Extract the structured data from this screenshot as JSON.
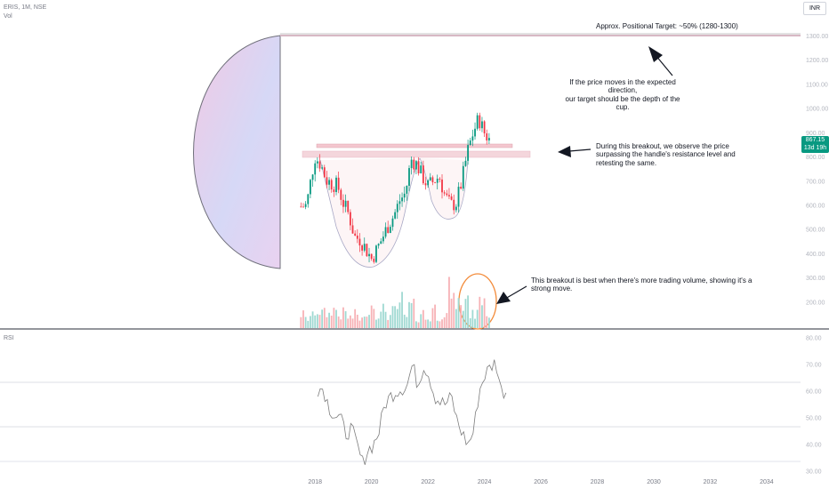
{
  "header": {
    "symbol_line": "ERIS, 1M, NSE",
    "volume_label": "Vol",
    "currency": "INR",
    "rsi_label": "RSI"
  },
  "last_price": {
    "value": "867.15",
    "countdown": "13d 19h"
  },
  "annotations": {
    "target": "Approx. Positional Target: ~50% (1280-1300)",
    "depth": "If the price moves in the expected direction,\nour target should be the depth of the cup.",
    "breakout": "During this breakout, we observe the price\nsurpassing the handle's resistance level and\nretesting the same.",
    "volume": "This breakout is best when there's more trading volume, showing it's a strong move."
  },
  "colors": {
    "up": "#089981",
    "down": "#f23645",
    "volume_up": "#9fd9d2",
    "volume_down": "#f7b2b6",
    "rsi_line": "#7e7e7e",
    "ellipse": "#f38b3a",
    "cup_gradient_start": "#f3cfe6",
    "cup_gradient_end": "#d0dbfb"
  },
  "chart_data": [
    {
      "type": "candlestick",
      "title": "ERIS, 1M, NSE",
      "x_axis": {
        "ticks": [
          "2018",
          "2020",
          "2022",
          "2024",
          "2026",
          "2028",
          "2030",
          "2032",
          "2034"
        ],
        "range": [
          2017.3,
          2035.2
        ]
      },
      "y_axis": {
        "ticks": [
          200,
          300,
          400,
          500,
          600,
          700,
          800,
          900,
          1000,
          1100,
          1200,
          1300
        ],
        "range": [
          152,
          1327
        ],
        "unit": "INR"
      },
      "target_line": 1280,
      "resistance_line": 848,
      "support_zone": [
        810,
        830
      ],
      "close_series": {
        "x": [
          2017.5,
          2017.7,
          2017.9,
          2018.0,
          2018.2,
          2018.4,
          2018.6,
          2018.8,
          2019.0,
          2019.2,
          2019.4,
          2019.6,
          2019.8,
          2020.0,
          2020.2,
          2020.4,
          2020.6,
          2020.8,
          2021.0,
          2021.2,
          2021.4,
          2021.6,
          2021.8,
          2022.0,
          2022.2,
          2022.4,
          2022.6,
          2022.8,
          2023.0,
          2023.2,
          2023.4,
          2023.6,
          2023.8,
          2024.0,
          2024.2
        ],
        "y": [
          595,
          600,
          740,
          800,
          770,
          705,
          690,
          680,
          610,
          560,
          470,
          460,
          420,
          380,
          420,
          470,
          520,
          560,
          620,
          650,
          790,
          770,
          720,
          680,
          700,
          720,
          640,
          600,
          610,
          700,
          820,
          900,
          960,
          900,
          867
        ]
      },
      "volume": [
        9,
        6,
        8,
        11,
        10,
        9,
        12,
        8,
        10,
        7,
        9,
        6,
        12,
        15,
        9,
        12,
        8,
        11,
        18,
        7,
        14,
        6,
        10,
        6,
        13,
        7,
        9,
        25,
        17,
        13,
        21,
        9,
        15,
        23,
        10
      ],
      "rsi": {
        "ylim": [
          30,
          80
        ],
        "ticks": [
          30,
          40,
          50,
          60,
          70,
          80
        ],
        "reference_lines": [
          40,
          60
        ],
        "values": [
          61,
          61,
          54,
          51,
          50,
          44,
          46,
          40,
          33,
          38,
          40,
          45,
          55,
          58,
          60,
          61,
          62,
          70,
          62,
          70,
          66,
          58,
          56,
          55,
          58,
          49,
          44,
          40,
          45,
          60,
          66,
          69,
          71,
          60,
          60
        ]
      }
    }
  ]
}
